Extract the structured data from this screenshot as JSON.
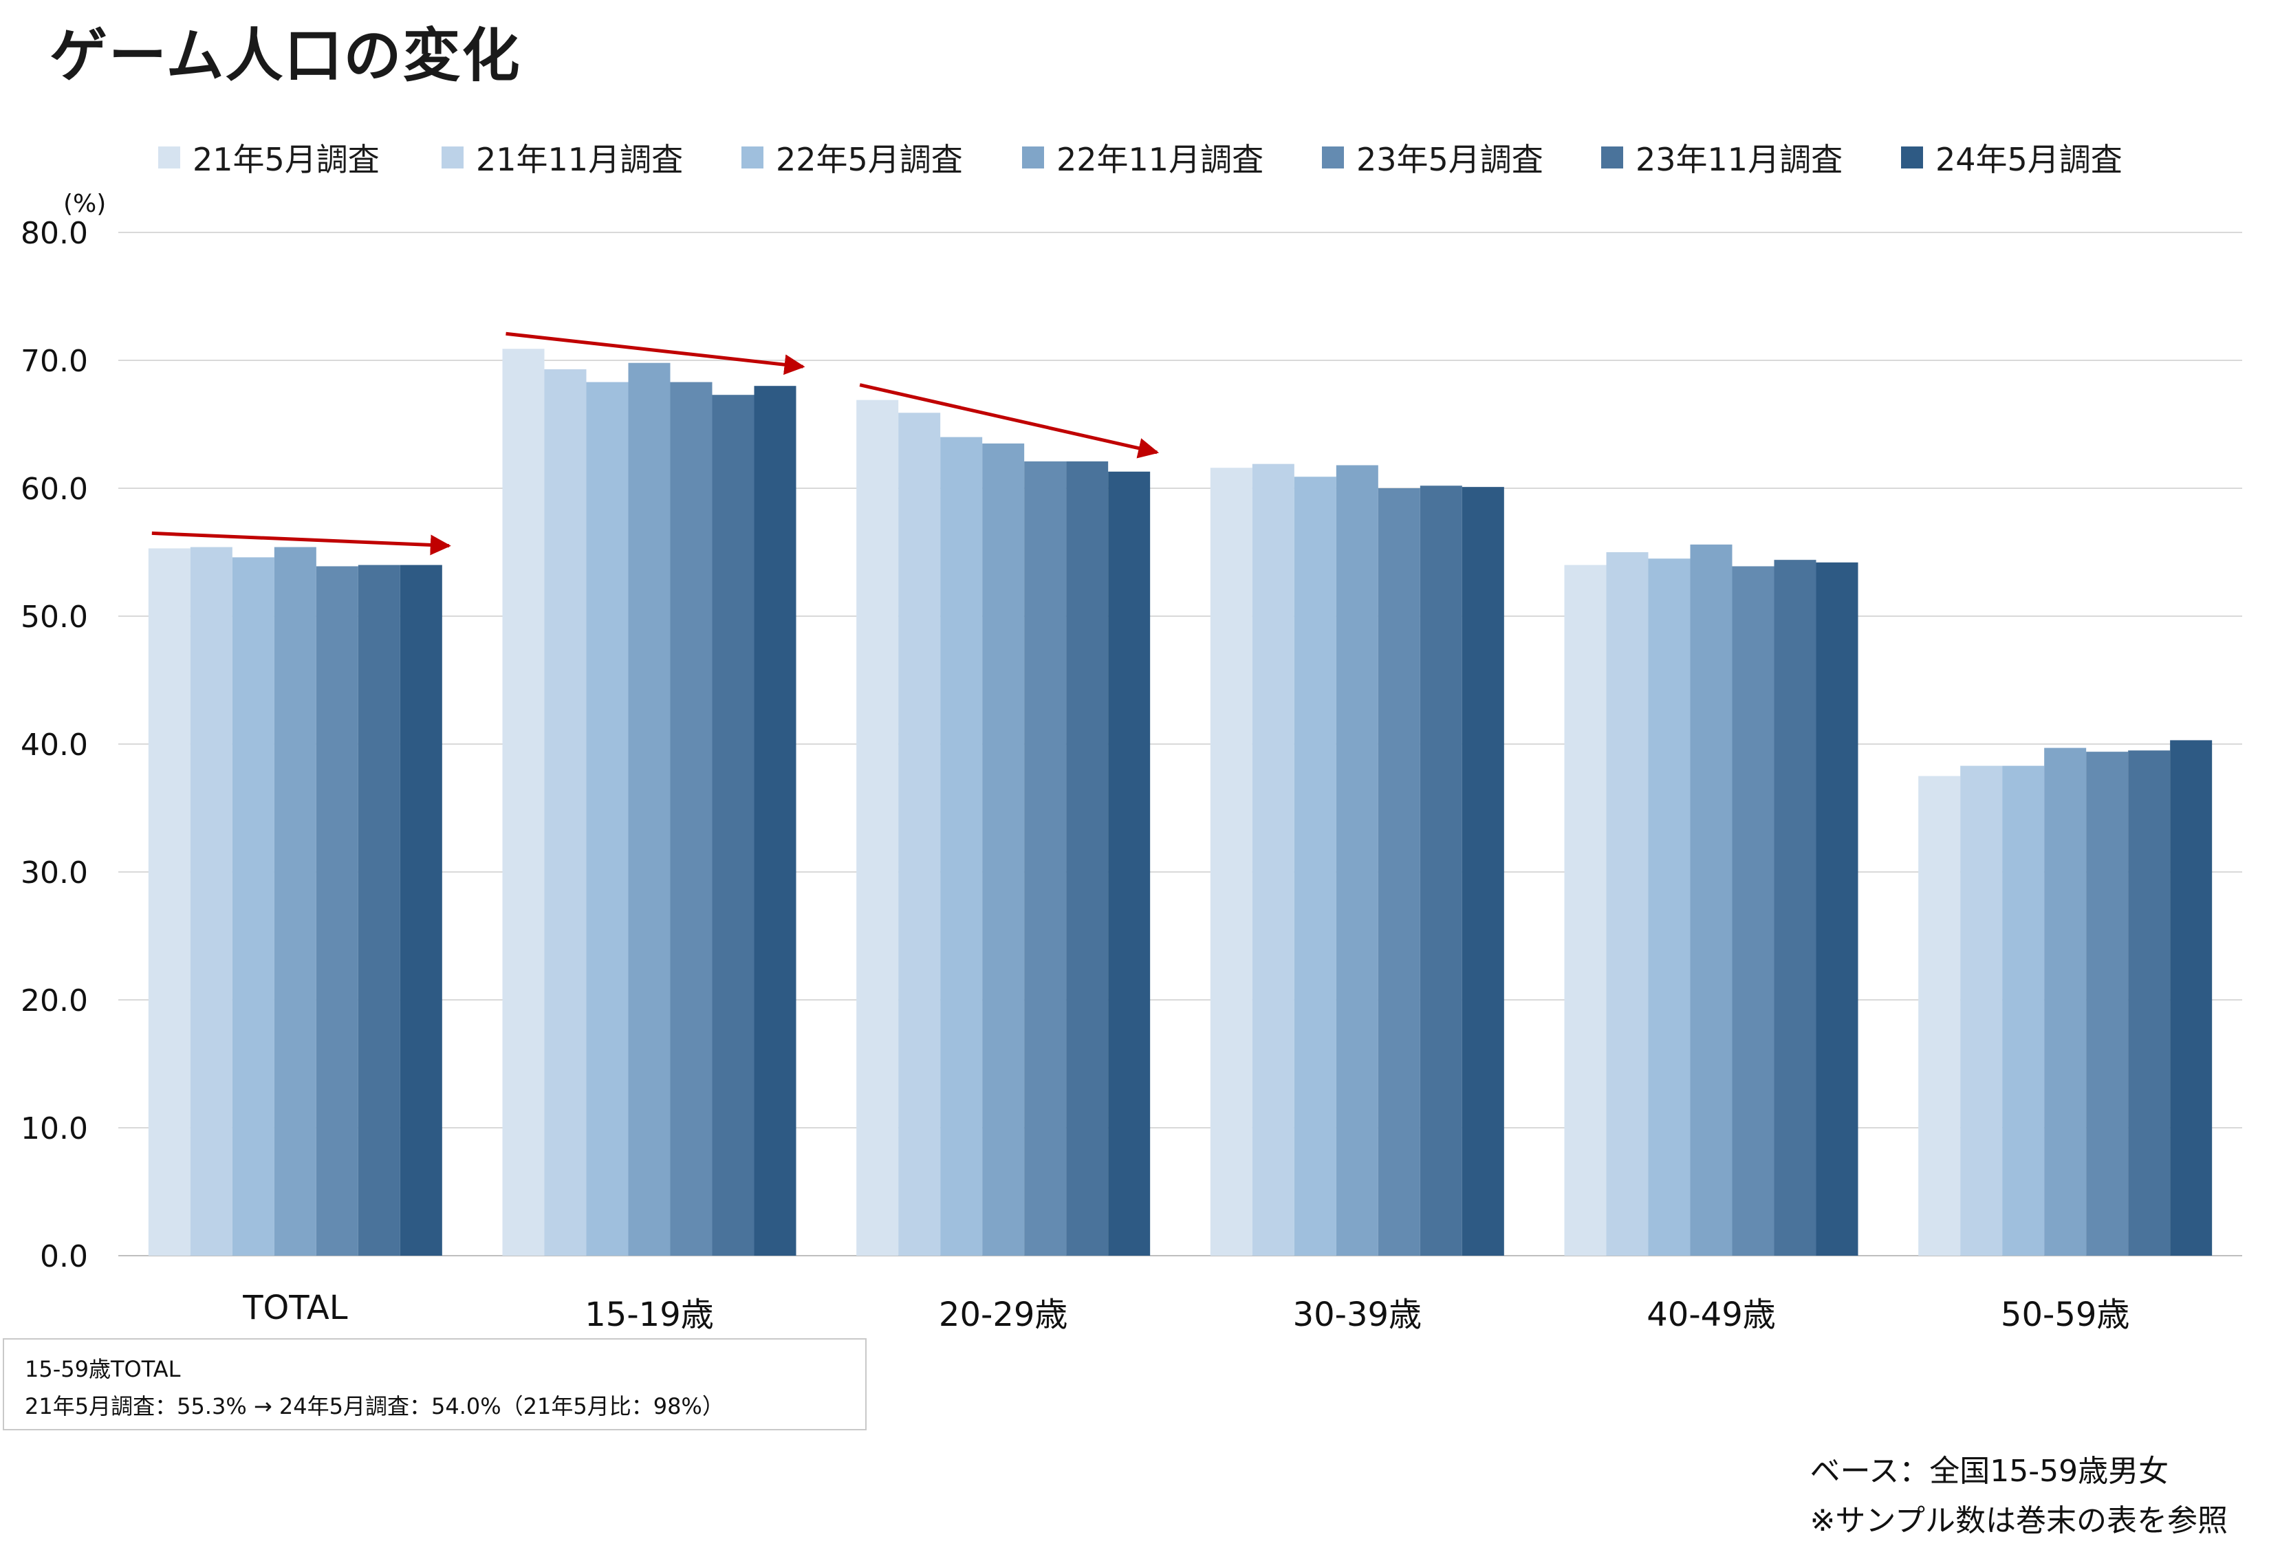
{
  "title": "ゲーム人口の変化",
  "chart_data": {
    "type": "bar",
    "ylabel": "(%)",
    "ylim": [
      0,
      80
    ],
    "yticks": [
      "0.0",
      "10.0",
      "20.0",
      "30.0",
      "40.0",
      "50.0",
      "60.0",
      "70.0",
      "80.0"
    ],
    "categories": [
      "TOTAL",
      "15-19歳",
      "20-29歳",
      "30-39歳",
      "40-49歳",
      "50-59歳"
    ],
    "grid": true,
    "legend_position": "top",
    "series": [
      {
        "name": "21年5月調査",
        "color": "#d6e3f0",
        "values": [
          55.3,
          70.9,
          66.9,
          61.6,
          54.0,
          37.5
        ]
      },
      {
        "name": "21年11月調査",
        "color": "#bcd2e8",
        "values": [
          55.4,
          69.3,
          65.9,
          61.9,
          55.0,
          38.3
        ]
      },
      {
        "name": "22年5月調査",
        "color": "#9fbfdd",
        "values": [
          54.6,
          68.3,
          64.0,
          60.9,
          54.5,
          38.3
        ]
      },
      {
        "name": "22年11月調査",
        "color": "#80a5c8",
        "values": [
          55.4,
          69.8,
          63.5,
          61.8,
          55.6,
          39.7
        ]
      },
      {
        "name": "23年5月調査",
        "color": "#648bb1",
        "values": [
          53.9,
          68.3,
          62.1,
          60.0,
          53.9,
          39.4
        ]
      },
      {
        "name": "23年11月調査",
        "color": "#4a739b",
        "values": [
          54.0,
          67.3,
          62.1,
          60.2,
          54.4,
          39.5
        ]
      },
      {
        "name": "24年5月調査",
        "color": "#2e5a84",
        "values": [
          54.0,
          68.0,
          61.3,
          60.1,
          54.2,
          40.3
        ]
      }
    ],
    "annotations": {
      "arrow_color": "#c00000",
      "trend_arrows": [
        "TOTAL",
        "15-19歳",
        "20-29歳"
      ]
    }
  },
  "note": {
    "line1": "15-59歳TOTAL",
    "line2": "21年5月調査：55.3% → 24年5月調査：54.0%（21年5月比：98%）"
  },
  "footnote": {
    "line1": "ベース：全国15-59歳男女",
    "line2": "※サンプル数は巻末の表を参照"
  }
}
